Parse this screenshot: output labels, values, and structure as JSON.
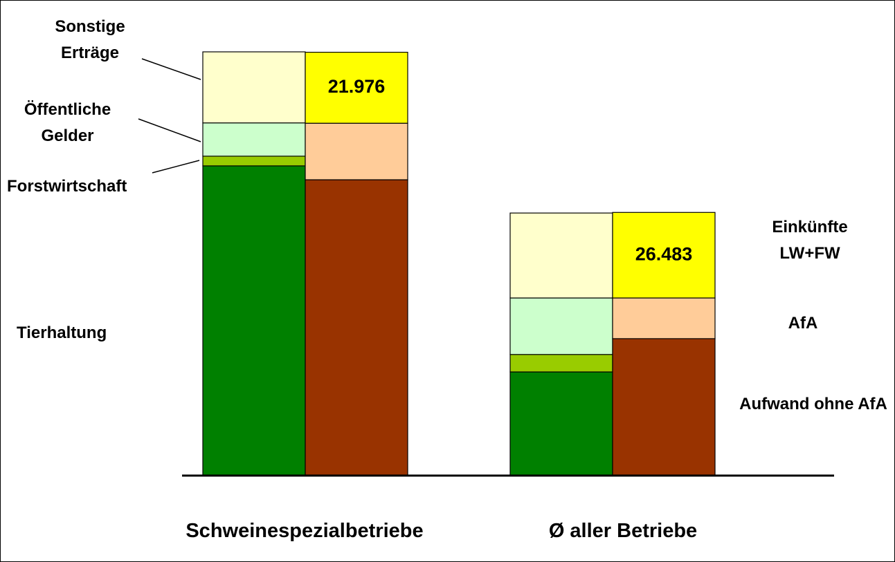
{
  "chart_data": {
    "type": "bar",
    "categories": [
      "Schweinespezialbetriebe",
      "Ø aller Betriebe"
    ],
    "stacks": [
      {
        "series": [
          {
            "name": "Tierhaltung",
            "color": "#008000",
            "values": [
              95900,
              32100
            ]
          },
          {
            "name": "Forstwirtschaft",
            "color": "#99cc00",
            "values": [
              3000,
              5400
            ]
          },
          {
            "name": "Öffentliche Gelder",
            "color": "#ccffcc",
            "values": [
              10300,
              17500
            ]
          },
          {
            "name": "Sonstige Erträge",
            "color": "#ffffcc",
            "values": [
              22000,
              26300
            ]
          }
        ]
      },
      {
        "series": [
          {
            "name": "Aufwand ohne AfA",
            "color": "#993300",
            "values": [
              91600,
              42400
            ]
          },
          {
            "name": "AfA",
            "color": "#ffcc99",
            "values": [
              17500,
              12600
            ]
          },
          {
            "name": "Einkünfte LW+FW",
            "color": "#ffff00",
            "values": [
              21976,
              26483
            ],
            "value_labels": [
              "21.976",
              "26.483"
            ]
          }
        ]
      }
    ]
  }
}
